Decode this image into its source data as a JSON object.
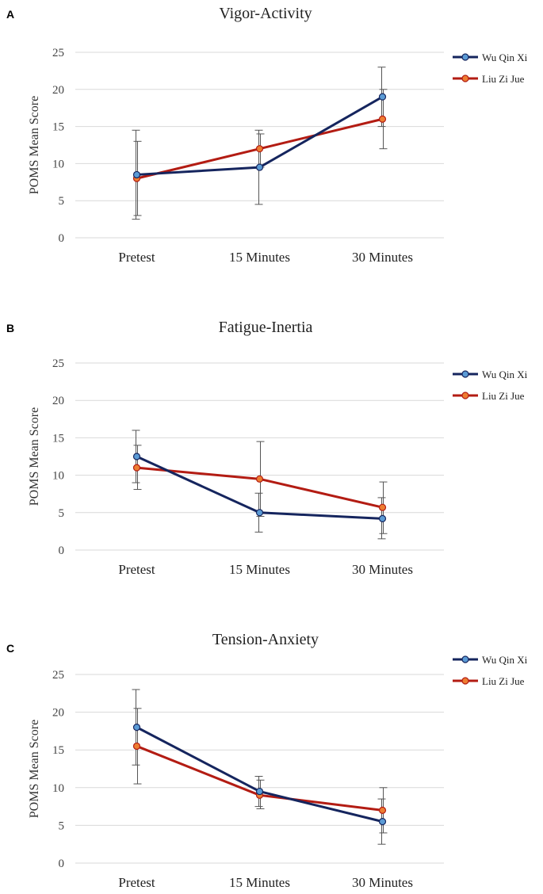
{
  "colors": {
    "series1": "#15255e",
    "series2": "#b31c13",
    "marker1": "#5b9bd5",
    "marker2": "#ed7d31",
    "grid": "#d9d9d9",
    "errorbar": "#555555"
  },
  "chart_data": [
    {
      "type": "line",
      "panel": "A",
      "title": "Vigor-Activity",
      "ylabel": "POMS Mean Score",
      "xlabel": "",
      "categories": [
        "Pretest",
        "15 Minutes",
        "30 Minutes"
      ],
      "ylim": [
        0,
        25
      ],
      "yticks": [
        0,
        5,
        10,
        15,
        20,
        25
      ],
      "grid": true,
      "legend": "right",
      "series": [
        {
          "name": "Wu Qin Xi",
          "values": [
            8.5,
            9.5,
            19
          ],
          "err_low": [
            2.5,
            4.5,
            15
          ],
          "err_high": [
            14.5,
            14.5,
            23
          ]
        },
        {
          "name": "Liu Zi Jue",
          "values": [
            8,
            12,
            16
          ],
          "err_low": [
            3,
            9.5,
            12
          ],
          "err_high": [
            13,
            14,
            20
          ]
        }
      ]
    },
    {
      "type": "line",
      "panel": "B",
      "title": "Fatigue-Inertia",
      "ylabel": "POMS Mean Score",
      "xlabel": "",
      "categories": [
        "Pretest",
        "15 Minutes",
        "30 Minutes"
      ],
      "ylim": [
        0,
        25
      ],
      "yticks": [
        0,
        5,
        10,
        15,
        20,
        25
      ],
      "grid": true,
      "legend": "right",
      "series": [
        {
          "name": "Wu Qin Xi",
          "values": [
            12.5,
            5,
            4.2
          ],
          "err_low": [
            9,
            2.4,
            1.5
          ],
          "err_high": [
            16,
            7.6,
            7
          ]
        },
        {
          "name": "Liu Zi Jue",
          "values": [
            11,
            9.5,
            5.7
          ],
          "err_low": [
            8.1,
            4.5,
            2.2
          ],
          "err_high": [
            14,
            14.5,
            9.1
          ]
        }
      ]
    },
    {
      "type": "line",
      "panel": "C",
      "title": "Tension-Anxiety",
      "ylabel": "POMS Mean Score",
      "xlabel": "",
      "categories": [
        "Pretest",
        "15 Minutes",
        "30 Minutes"
      ],
      "ylim": [
        0,
        25
      ],
      "yticks": [
        0,
        5,
        10,
        15,
        20,
        25
      ],
      "grid": true,
      "legend": "right",
      "series": [
        {
          "name": "Wu Qin Xi",
          "values": [
            18,
            9.5,
            5.5
          ],
          "err_low": [
            13,
            7.5,
            2.5
          ],
          "err_high": [
            23,
            11.5,
            8.5
          ]
        },
        {
          "name": "Liu Zi Jue",
          "values": [
            15.5,
            9,
            7
          ],
          "err_low": [
            10.5,
            7.2,
            4
          ],
          "err_high": [
            20.5,
            11,
            10
          ]
        }
      ]
    }
  ]
}
